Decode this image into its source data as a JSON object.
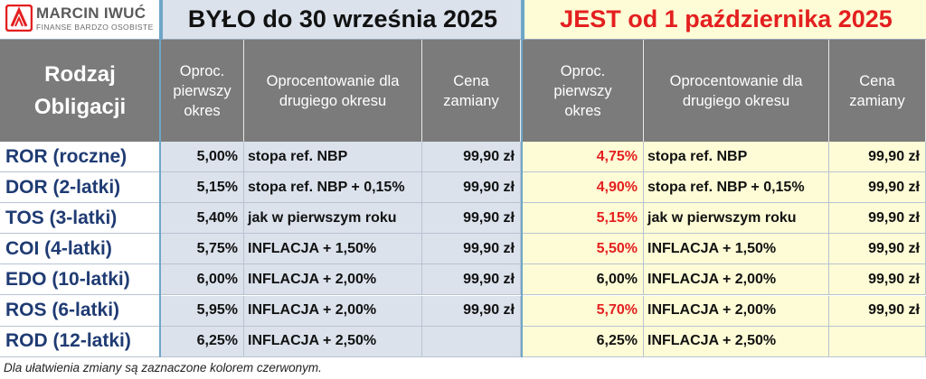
{
  "brand": {
    "name": "MARCIN IWUĆ",
    "tagline": "FINANSE BARDZO OSOBISTE"
  },
  "period_before": {
    "title": "BYŁO do 30 września 2025"
  },
  "period_after": {
    "title": "JEST od 1 października 2025",
    "color": "#e41f1f"
  },
  "columns": {
    "kind": [
      "Rodzaj",
      "Obligacji"
    ],
    "first_rate": [
      "Oproc.",
      "pierwszy",
      "okres"
    ],
    "second_rate": [
      "Oprocentowanie dla",
      "drugiego okresu"
    ],
    "exchange_price": [
      "Cena",
      "zamiany"
    ]
  },
  "rows": [
    {
      "name": "ROR (roczne)",
      "b_rate": "5,00%",
      "b_second": "stopa ref. NBP",
      "b_price": "99,90 zł",
      "a_rate": "4,75%",
      "a_rate_changed": true,
      "a_second": "stopa ref. NBP",
      "a_price": "99,90 zł"
    },
    {
      "name": "DOR (2-latki)",
      "b_rate": "5,15%",
      "b_second": "stopa ref. NBP + 0,15%",
      "b_price": "99,90 zł",
      "a_rate": "4,90%",
      "a_rate_changed": true,
      "a_second": "stopa ref. NBP + 0,15%",
      "a_price": "99,90 zł"
    },
    {
      "name": "TOS (3-latki)",
      "b_rate": "5,40%",
      "b_second": "jak w pierwszym roku",
      "b_price": "99,90 zł",
      "a_rate": "5,15%",
      "a_rate_changed": true,
      "a_second": "jak w pierwszym roku",
      "a_price": "99,90 zł"
    },
    {
      "name": "COI (4-latki)",
      "b_rate": "5,75%",
      "b_second": "INFLACJA + 1,50%",
      "b_price": "99,90 zł",
      "a_rate": "5,50%",
      "a_rate_changed": true,
      "a_second": "INFLACJA + 1,50%",
      "a_price": "99,90 zł"
    },
    {
      "name": "EDO (10-latki)",
      "b_rate": "6,00%",
      "b_second": "INFLACJA + 2,00%",
      "b_price": "99,90 zł",
      "a_rate": "6,00%",
      "a_rate_changed": false,
      "a_second": "INFLACJA + 2,00%",
      "a_price": "99,90 zł"
    },
    {
      "name": "ROS (6-latki)",
      "b_rate": "5,95%",
      "b_second": "INFLACJA + 2,00%",
      "b_price": "99,90 zł",
      "a_rate": "5,70%",
      "a_rate_changed": true,
      "a_second": "INFLACJA + 2,00%",
      "a_price": "99,90 zł"
    },
    {
      "name": "ROD (12-latki)",
      "b_rate": "6,25%",
      "b_second": "INFLACJA + 2,50%",
      "b_price": "",
      "a_rate": "6,25%",
      "a_rate_changed": false,
      "a_second": "INFLACJA + 2,50%",
      "a_price": ""
    }
  ],
  "footnote": "Dla ułatwienia zmiany są zaznaczone kolorem czerwonym."
}
